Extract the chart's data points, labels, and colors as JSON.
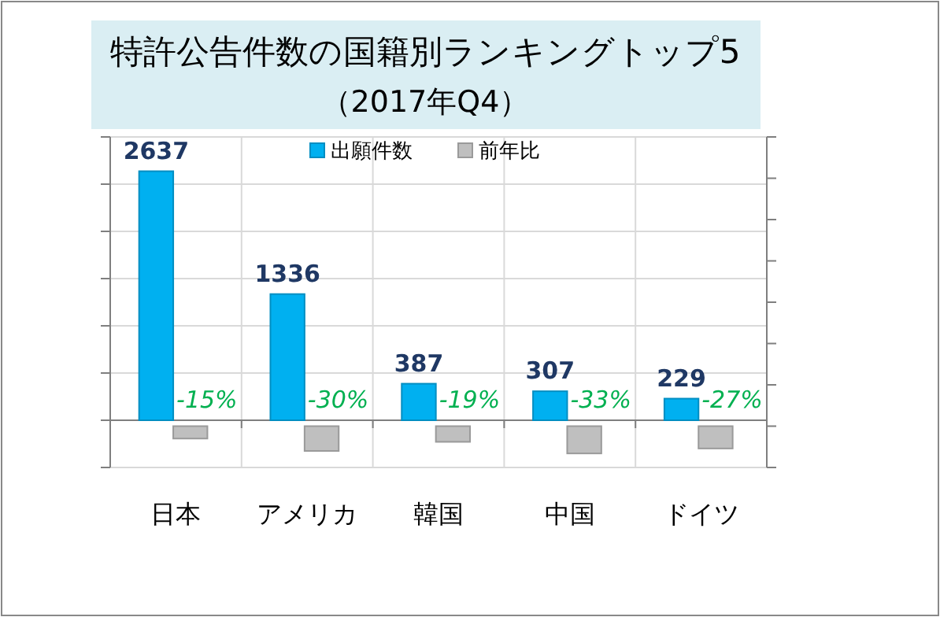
{
  "chart_data": {
    "type": "bar",
    "title": "特許公告件数の国籍別ランキングトップ5\n（2017年Q4）",
    "categories": [
      "日本",
      "アメリカ",
      "韓国",
      "中国",
      "ドイツ"
    ],
    "series": [
      {
        "name": "出願件数",
        "color": "#00b0f0",
        "values": [
          2637,
          1336,
          387,
          307,
          229
        ],
        "value_labels": [
          "2637",
          "1336",
          "387",
          "307",
          "229"
        ]
      },
      {
        "name": "前年比",
        "color": "#bfbfbf",
        "axis": "y2",
        "values": [
          -15,
          -30,
          -19,
          -33,
          -27
        ],
        "value_labels": [
          "-15%",
          "-30%",
          "-19%",
          "-33%",
          "-27%"
        ]
      }
    ],
    "ylim": [
      -500,
      3000
    ],
    "yticks": [
      {
        "value": -500,
        "label": null
      },
      {
        "value": 0,
        "label": null
      },
      {
        "value": 500,
        "label": null
      },
      {
        "value": 1000,
        "label": null
      },
      {
        "value": 1500,
        "label": null
      },
      {
        "value": 2000,
        "label": null
      },
      {
        "value": 2500,
        "label": null
      },
      {
        "value": 3000,
        "label": null
      }
    ],
    "y2lim": [
      -50,
      350
    ],
    "y2ticks": [
      {
        "value": -50,
        "label": null
      },
      {
        "value": 0,
        "label": null
      },
      {
        "value": 50,
        "label": null
      },
      {
        "value": 100,
        "label": null
      },
      {
        "value": 150,
        "label": null
      },
      {
        "value": 200,
        "label": null
      },
      {
        "value": 250,
        "label": null
      },
      {
        "value": 300,
        "label": null
      },
      {
        "value": 350,
        "label": null
      }
    ],
    "tick_labels": "x",
    "grid": true,
    "legend": "top"
  }
}
